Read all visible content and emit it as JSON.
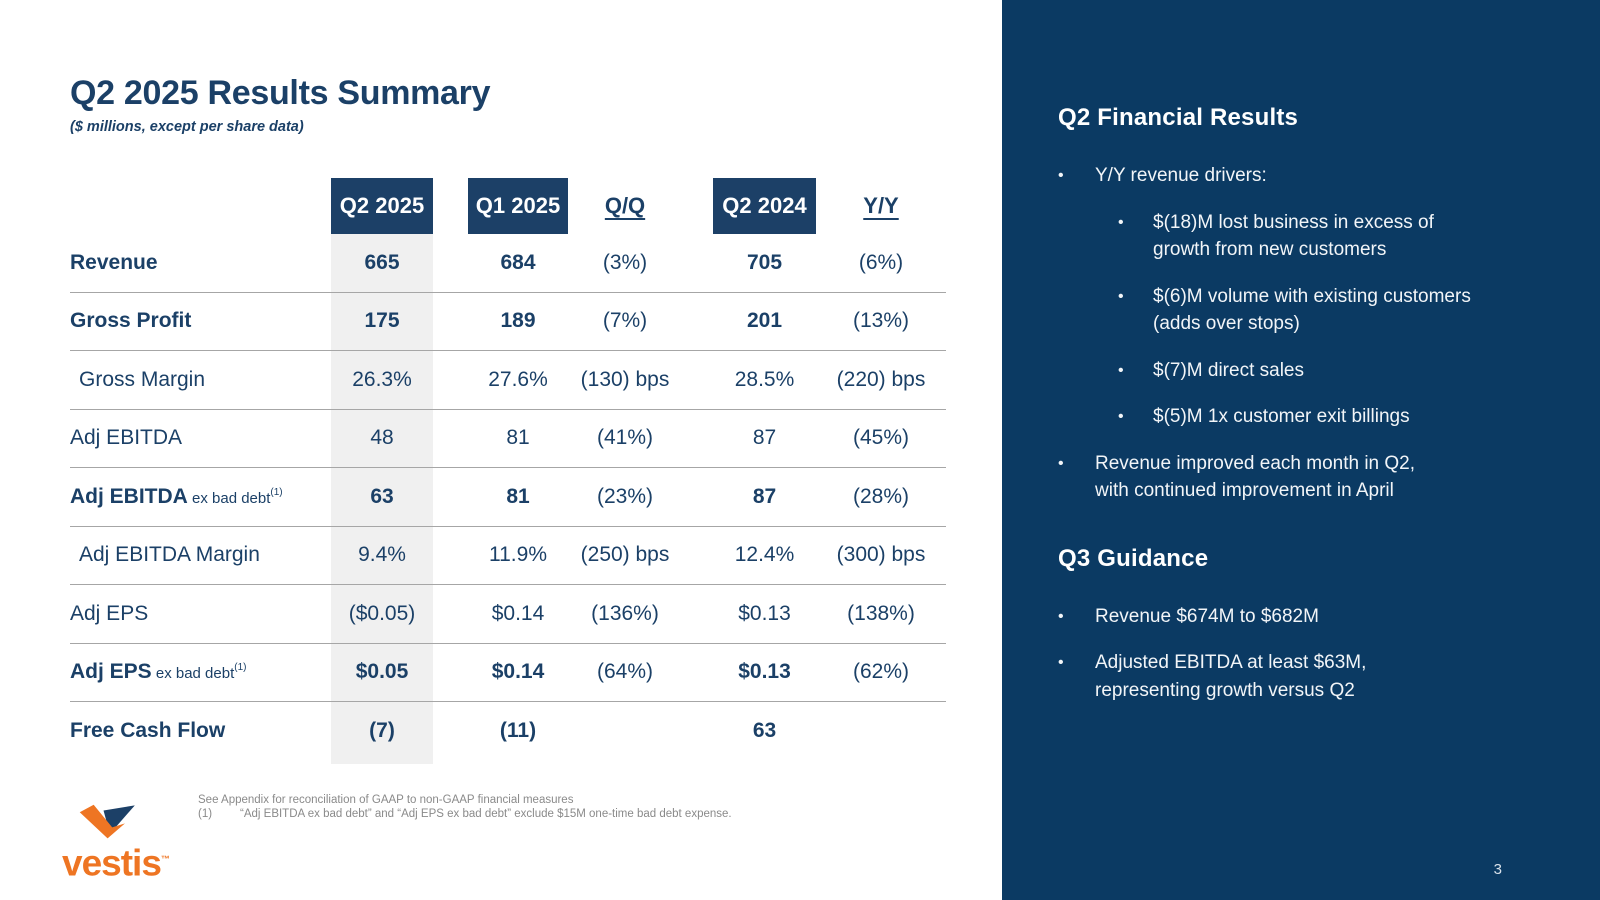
{
  "slide": {
    "title": "Q2 2025 Results Summary",
    "subtitle": "($ millions, except per share data)",
    "page_number": "3"
  },
  "colors": {
    "panel_navy": "#0b3a63",
    "header_box_navy": "#1c4067",
    "table_text_navy": "#1b4067",
    "band_gray": "#f0f0f0",
    "brand_orange": "#ee7523"
  },
  "table": {
    "columns": [
      {
        "label": "Q2 2025",
        "style": "box"
      },
      {
        "label": "Q1 2025",
        "style": "box"
      },
      {
        "label": "Q/Q",
        "style": "underline"
      },
      {
        "label": "Q2 2024",
        "style": "box"
      },
      {
        "label": "Y/Y",
        "style": "underline"
      }
    ],
    "rows": [
      {
        "label": "Revenue",
        "suffix": "",
        "sup": "",
        "bold": true,
        "indent": false,
        "values": [
          "665",
          "684",
          "(3%)",
          "705",
          "(6%)"
        ]
      },
      {
        "label": "Gross Profit",
        "suffix": "",
        "sup": "",
        "bold": true,
        "indent": false,
        "values": [
          "175",
          "189",
          "(7%)",
          "201",
          "(13%)"
        ]
      },
      {
        "label": "Gross Margin",
        "suffix": "",
        "sup": "",
        "bold": false,
        "indent": true,
        "values": [
          "26.3%",
          "27.6%",
          "(130) bps",
          "28.5%",
          "(220) bps"
        ]
      },
      {
        "label": "Adj EBITDA",
        "suffix": "",
        "sup": "",
        "bold": false,
        "indent": false,
        "values": [
          "48",
          "81",
          "(41%)",
          "87",
          "(45%)"
        ]
      },
      {
        "label": "Adj EBITDA",
        "suffix": " ex bad debt",
        "sup": "(1)",
        "bold": true,
        "indent": false,
        "values": [
          "63",
          "81",
          "(23%)",
          "87",
          "(28%)"
        ]
      },
      {
        "label": "Adj EBITDA Margin",
        "suffix": "",
        "sup": "",
        "bold": false,
        "indent": true,
        "values": [
          "9.4%",
          "11.9%",
          "(250) bps",
          "12.4%",
          "(300) bps"
        ]
      },
      {
        "label": "Adj EPS",
        "suffix": "",
        "sup": "",
        "bold": false,
        "indent": false,
        "values": [
          "($0.05)",
          "$0.14",
          "(136%)",
          "$0.13",
          "(138%)"
        ]
      },
      {
        "label": "Adj EPS",
        "suffix": " ex bad debt",
        "sup": "(1)",
        "bold": true,
        "indent": false,
        "values": [
          "$0.05",
          "$0.14",
          "(64%)",
          "$0.13",
          "(62%)"
        ]
      },
      {
        "label": "Free Cash Flow",
        "suffix": "",
        "sup": "",
        "bold": true,
        "indent": false,
        "values": [
          "(7)",
          "(11)",
          "",
          "63",
          ""
        ]
      }
    ]
  },
  "footnotes": {
    "line1": "See Appendix for reconciliation of GAAP to non-GAAP financial measures",
    "line2_marker": "(1)",
    "line2": "“Adj EBITDA ex bad debt” and “Adj EPS ex bad debt” exclude $15M one-time bad debt expense."
  },
  "logo": {
    "wordmark": "vestis",
    "trademark": "™"
  },
  "sidebar": {
    "section1": {
      "heading": "Q2 Financial Results",
      "bullets": [
        {
          "level": 1,
          "text": "Y/Y revenue drivers:"
        },
        {
          "level": 2,
          "text": "$(18)M lost business in excess of growth from new customers"
        },
        {
          "level": 2,
          "text": "$(6)M volume with existing customers (adds over stops)"
        },
        {
          "level": 2,
          "text": "$(7)M direct sales"
        },
        {
          "level": 2,
          "text": "$(5)M 1x customer exit billings"
        },
        {
          "level": 1,
          "text": "Revenue improved each month in Q2, with continued improvement in April"
        }
      ]
    },
    "section2": {
      "heading": "Q3 Guidance",
      "bullets": [
        {
          "level": 1,
          "text": "Revenue $674M to $682M"
        },
        {
          "level": 1,
          "text": "Adjusted EBITDA at least $63M, representing growth versus Q2"
        }
      ]
    }
  }
}
